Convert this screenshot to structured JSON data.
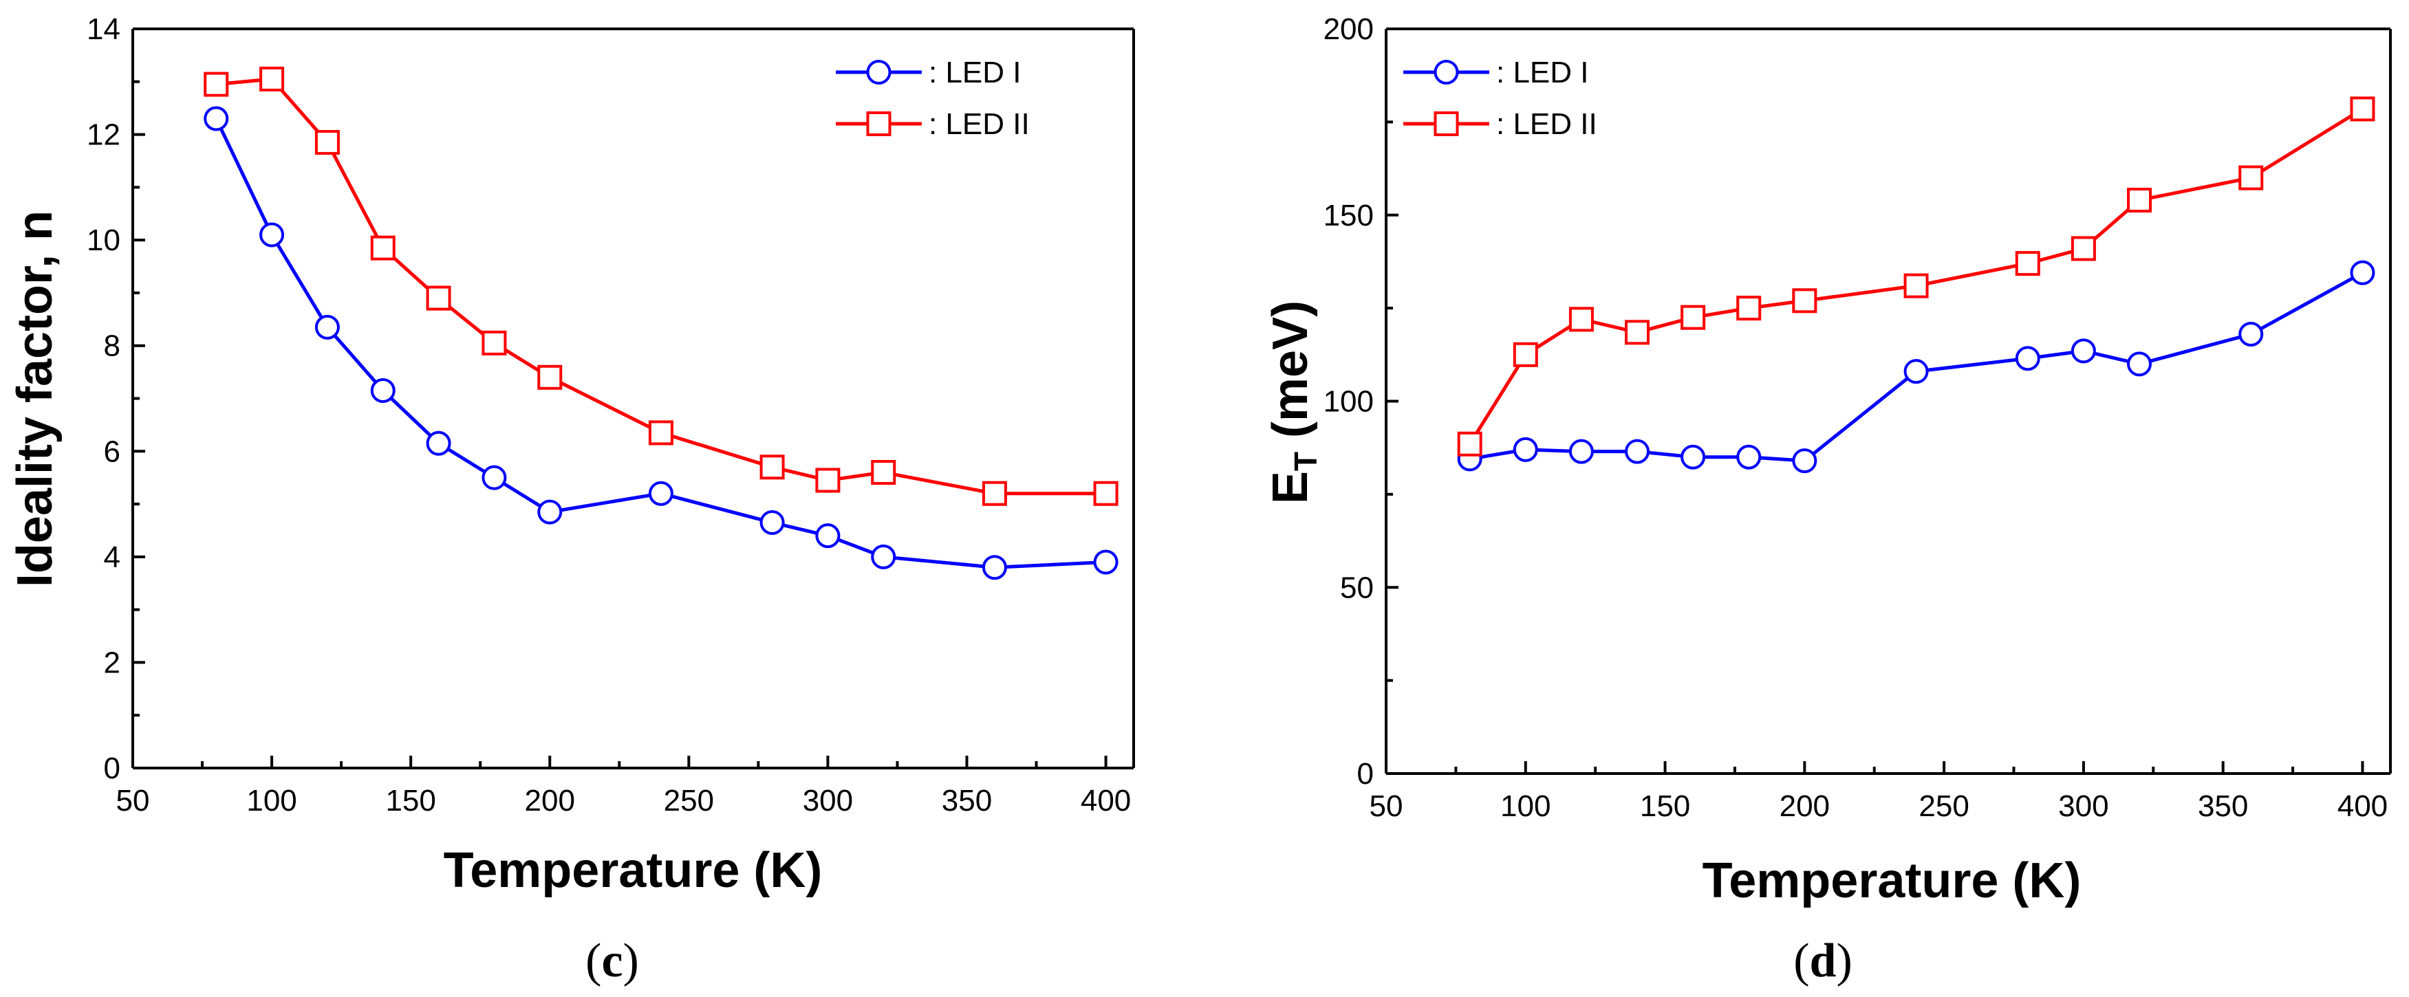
{
  "chart_data": [
    {
      "type": "line",
      "panel_label": {
        "open": "(",
        "letter": "c",
        "close": ")"
      },
      "xlabel": "Temperature (K)",
      "ylabel": "Ideality factor, n",
      "xlim": [
        50,
        410
      ],
      "ylim": [
        0,
        14
      ],
      "xticks": [
        50,
        100,
        150,
        200,
        250,
        300,
        350,
        400
      ],
      "yticks": [
        0,
        2,
        4,
        6,
        8,
        10,
        12,
        14
      ],
      "legend_position": "top-right",
      "x": [
        80,
        100,
        120,
        140,
        160,
        180,
        200,
        240,
        280,
        300,
        320,
        360,
        400
      ],
      "series": [
        {
          "name": ": LED I",
          "color": "#0000ff",
          "marker": "circle",
          "values": [
            12.3,
            10.1,
            8.35,
            7.15,
            6.15,
            5.5,
            4.85,
            5.2,
            4.65,
            4.4,
            4.0,
            3.8,
            3.9
          ]
        },
        {
          "name": ": LED II",
          "color": "#ff0000",
          "marker": "square",
          "values": [
            12.95,
            13.05,
            11.85,
            9.85,
            8.9,
            8.05,
            7.4,
            6.35,
            5.7,
            5.45,
            5.6,
            5.2,
            5.2
          ]
        }
      ]
    },
    {
      "type": "line",
      "panel_label": {
        "open": "(",
        "letter": "d",
        "close": ")"
      },
      "xlabel": "Temperature (K)",
      "ylabel": {
        "main": "E",
        "sub": "T",
        "rest": " (meV)"
      },
      "xlim": [
        50,
        410
      ],
      "ylim": [
        0,
        200
      ],
      "xticks": [
        50,
        100,
        150,
        200,
        250,
        300,
        350,
        400
      ],
      "yticks": [
        0,
        50,
        100,
        150,
        200
      ],
      "legend_position": "top-left",
      "x": [
        80,
        100,
        120,
        140,
        160,
        180,
        200,
        240,
        280,
        300,
        320,
        360,
        400
      ],
      "series": [
        {
          "name": ": LED I",
          "color": "#0000ff",
          "marker": "circle",
          "values": [
            84.5,
            87,
            86.5,
            86.5,
            85,
            85,
            84,
            108,
            111.5,
            113.5,
            110,
            118,
            134.5
          ]
        },
        {
          "name": ": LED II",
          "color": "#ff0000",
          "marker": "square",
          "values": [
            88.5,
            112.5,
            122,
            118.5,
            122.5,
            125,
            127,
            131,
            137,
            141,
            154,
            160,
            178.5
          ]
        }
      ]
    }
  ]
}
